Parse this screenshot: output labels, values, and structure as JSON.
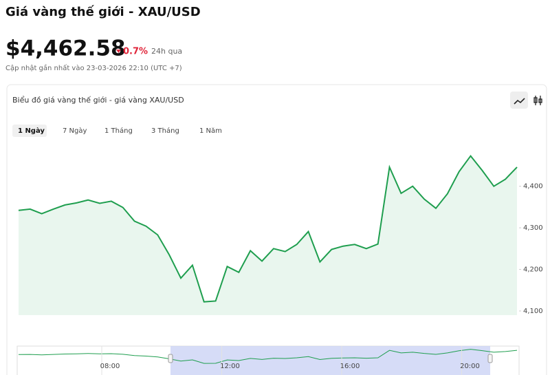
{
  "header": {
    "title": "Giá vàng thế giới - XAU/USD",
    "price": "$4,462.58",
    "change": "0.7%",
    "period": "24h qua",
    "updated": "Cập nhật gần nhất vào 23-03-2026 22:10 (UTC +7)"
  },
  "card": {
    "title": "Biểu đồ giá vàng thế giới - giá vàng XAU/USD",
    "tabs": [
      "1 Ngày",
      "7 Ngày",
      "1 Tháng",
      "3 Tháng",
      "1 Năm"
    ],
    "active_tab": 0
  },
  "chart_data": {
    "type": "line",
    "values": [
      4342,
      4345,
      4334,
      4345,
      4355,
      4360,
      4367,
      4359,
      4364,
      4349,
      4316,
      4304,
      4283,
      4235,
      4179,
      4210,
      4122,
      4124,
      4207,
      4193,
      4245,
      4220,
      4250,
      4243,
      4260,
      4291,
      4218,
      4248,
      4256,
      4260,
      4250,
      4261,
      4446,
      4383,
      4400,
      4369,
      4347,
      4382,
      4435,
      4473,
      4438,
      4400,
      4417,
      4446
    ],
    "color": "#1e9e4e",
    "area_color": "#e9f6ee",
    "ylim": [
      4090,
      4517
    ],
    "yticks": [
      {
        "value": 4100,
        "label": "4,100"
      },
      {
        "value": 4200,
        "label": "4,200"
      },
      {
        "value": 4300,
        "label": "4,300"
      },
      {
        "value": 4400,
        "label": "4,400"
      }
    ],
    "navigator": {
      "xticks": [
        "08:00",
        "12:00",
        "16:00",
        "20:00"
      ],
      "selection_color": "#ccd3f5"
    }
  }
}
